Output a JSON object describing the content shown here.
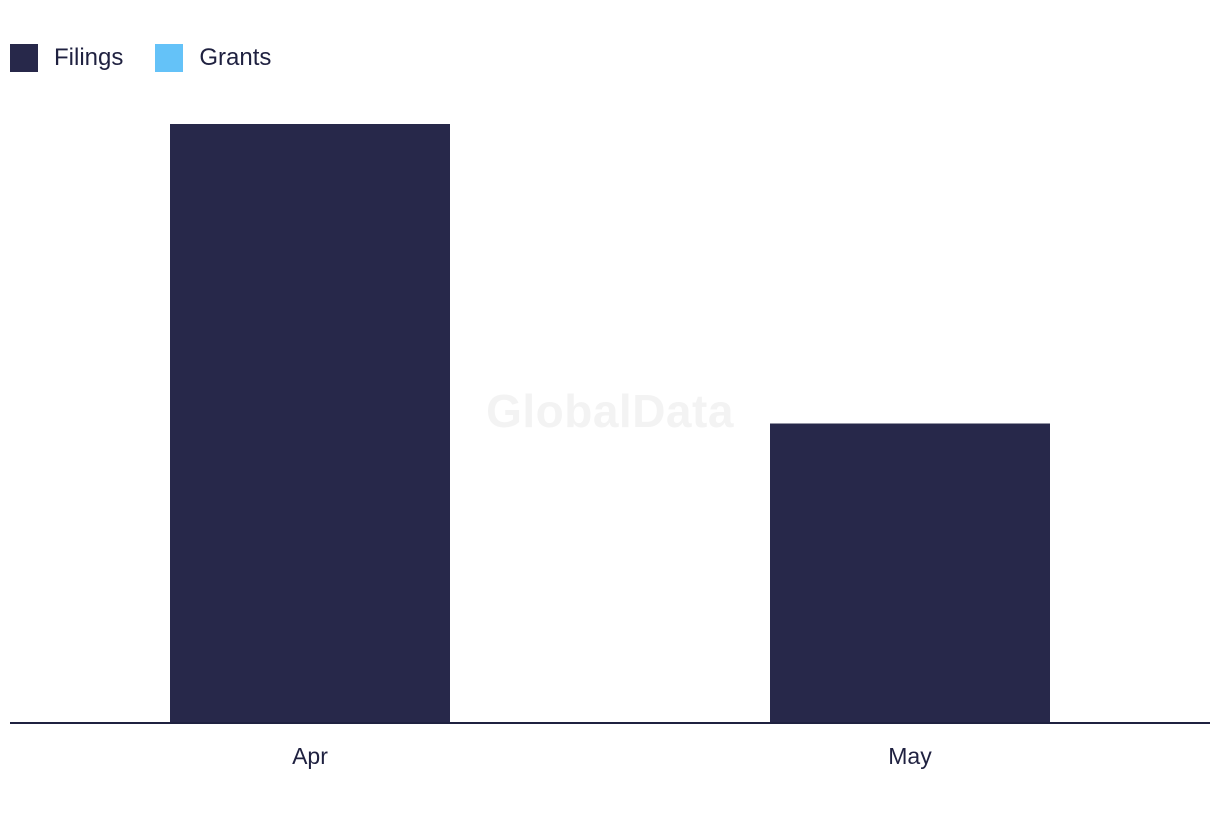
{
  "chart_data": {
    "type": "bar",
    "categories": [
      "Apr",
      "May"
    ],
    "series": [
      {
        "name": "Filings",
        "color": "#27284a",
        "values": [
          2,
          1
        ]
      },
      {
        "name": "Grants",
        "color": "#64c2f8",
        "values": [
          0,
          0
        ]
      }
    ],
    "ylim": [
      0,
      2
    ],
    "grid": false,
    "legend_position": "top-left",
    "watermark": "GlobalData"
  }
}
